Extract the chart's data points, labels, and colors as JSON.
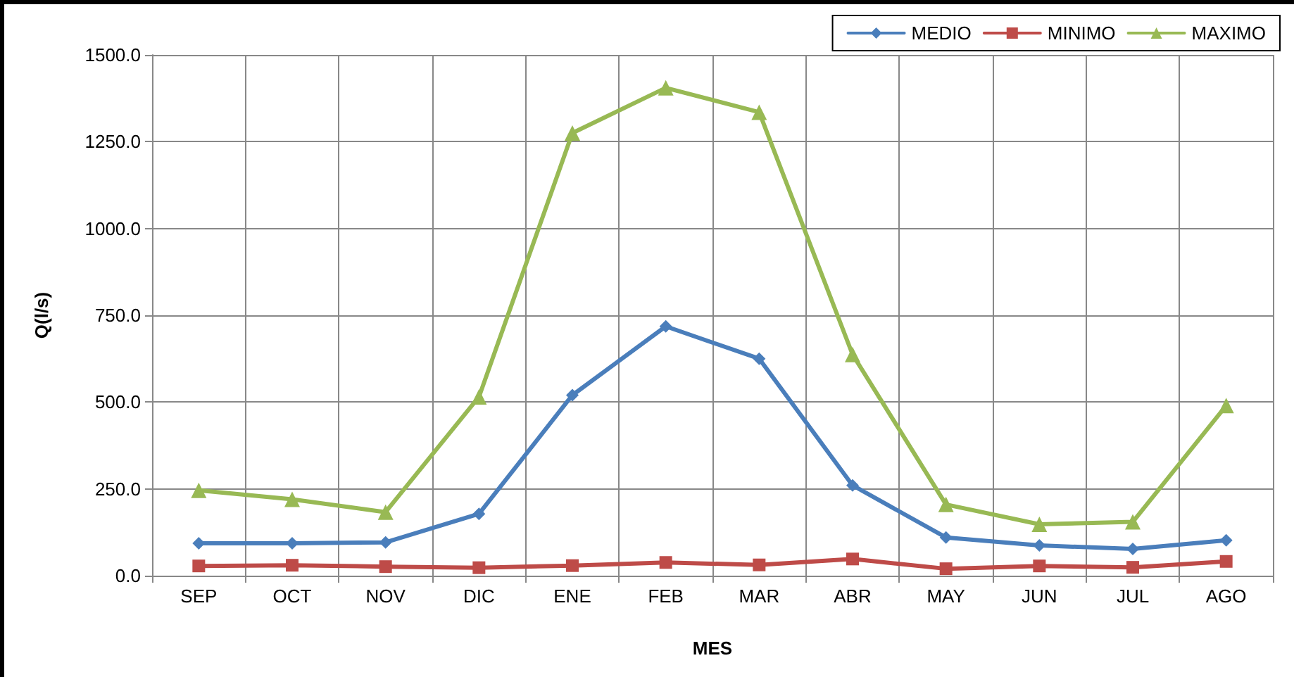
{
  "chart_data": {
    "type": "line",
    "xlabel": "MES",
    "ylabel": "Q(l/s)",
    "categories": [
      "SEP",
      "OCT",
      "NOV",
      "DIC",
      "ENE",
      "FEB",
      "MAR",
      "ABR",
      "MAY",
      "JUN",
      "JUL",
      "AGO"
    ],
    "series": [
      {
        "name": "MEDIO",
        "color": "#4a7ebb",
        "marker": "diamond",
        "values": [
          93,
          93,
          96,
          178,
          520,
          718,
          625,
          260,
          110,
          87,
          77,
          102
        ]
      },
      {
        "name": "MINIMO",
        "color": "#be4b48",
        "marker": "square",
        "values": [
          28,
          30,
          26,
          23,
          29,
          38,
          31,
          48,
          20,
          28,
          24,
          41
        ]
      },
      {
        "name": "MAXIMO",
        "color": "#98b954",
        "marker": "triangle",
        "values": [
          246,
          220,
          183,
          515,
          1275,
          1405,
          1335,
          637,
          205,
          148,
          155,
          490
        ]
      }
    ],
    "ylim": [
      0,
      1500
    ],
    "yticks": [
      {
        "value": 0,
        "label": "0.0"
      },
      {
        "value": 250,
        "label": "250.0"
      },
      {
        "value": 500,
        "label": "500.0"
      },
      {
        "value": 750,
        "label": "750.0"
      },
      {
        "value": 1000,
        "label": "1000.0"
      },
      {
        "value": 1250,
        "label": "1250.0"
      },
      {
        "value": 1500,
        "label": "1500.0"
      }
    ],
    "grid": true,
    "legend": "top right",
    "line_style": "solid"
  }
}
